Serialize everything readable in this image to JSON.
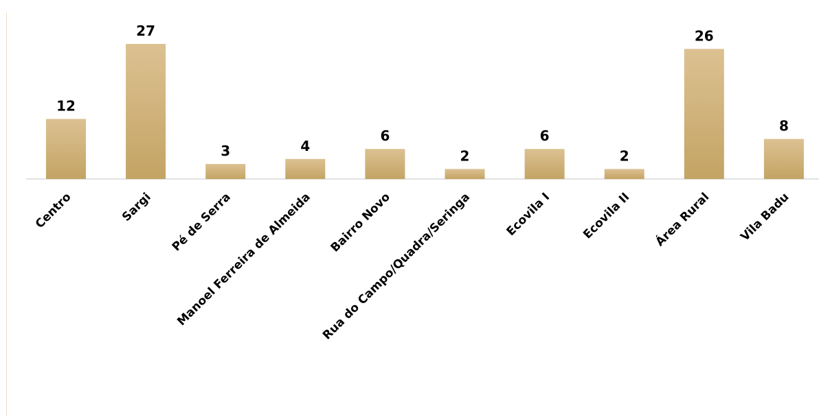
{
  "chart_data": {
    "type": "bar",
    "categories": [
      "Centro",
      "Sargi",
      "Pé de Serra",
      "Manoel Ferreira de Almeida",
      "Bairro Novo",
      "Rua do Campo/Quadra/Seringa",
      "Ecovila I",
      "Ecovila II",
      "Área Rural",
      "Vila Badu"
    ],
    "values": [
      12,
      27,
      3,
      4,
      6,
      2,
      6,
      2,
      26,
      8
    ],
    "title": "",
    "xlabel": "",
    "ylabel": "",
    "ylim": [
      0,
      27
    ],
    "grid": false,
    "legend": "none",
    "data_labels": true,
    "colors": {
      "bar_top": "#dcc192",
      "bar_bottom": "#c4a464",
      "axis": "#d9d9d9",
      "frame": "#f0dcc8",
      "text": "#000000"
    }
  }
}
